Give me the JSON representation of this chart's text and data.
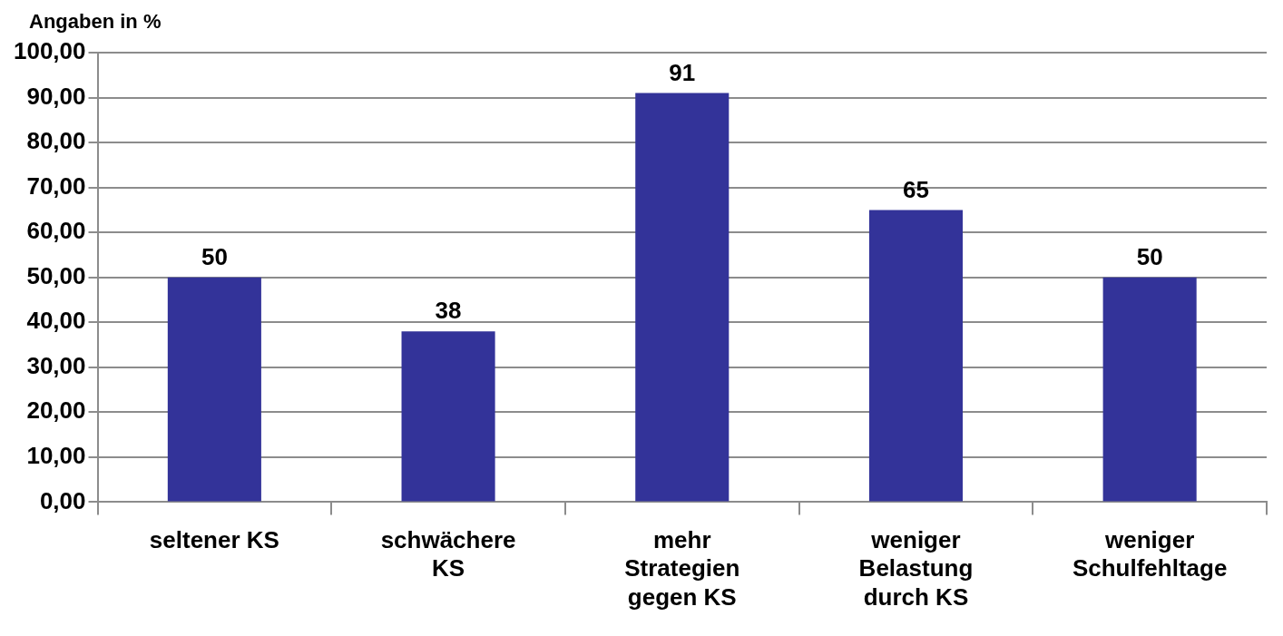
{
  "chart_data": {
    "type": "bar",
    "ylabel": "Angaben in %",
    "categories": [
      "seltener KS",
      "schwächere KS",
      "mehr Strategien gegen KS",
      "weniger Belastung durch KS",
      "weniger Schulfehltage"
    ],
    "values": [
      50,
      38,
      91,
      65,
      50
    ],
    "color": "#333399",
    "ylim": [
      0,
      100
    ],
    "yticks": [
      {
        "value": 0,
        "label": "0,00"
      },
      {
        "value": 10,
        "label": "10,00"
      },
      {
        "value": 20,
        "label": "20,00"
      },
      {
        "value": 30,
        "label": "30,00"
      },
      {
        "value": 40,
        "label": "40,00"
      },
      {
        "value": 50,
        "label": "50,00"
      },
      {
        "value": 60,
        "label": "60,00"
      },
      {
        "value": 70,
        "label": "70,00"
      },
      {
        "value": 80,
        "label": "80,00"
      },
      {
        "value": 90,
        "label": "90,00"
      },
      {
        "value": 100,
        "label": "100,00"
      }
    ],
    "grid": "y",
    "data_labels": true,
    "legend": false
  }
}
